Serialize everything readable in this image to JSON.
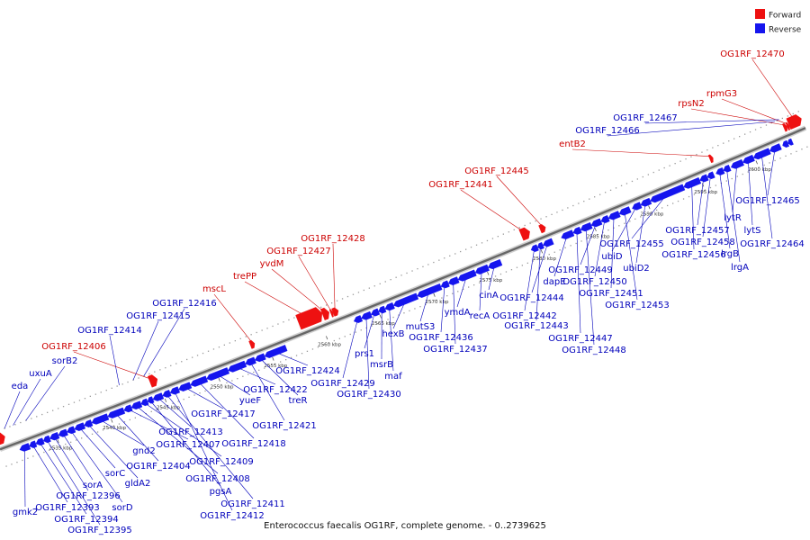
{
  "caption": "Enterococcus faecalis OG1RF, complete genome. - 0..2739625",
  "legend": [
    {
      "label": "Forward",
      "color": "#ee1111"
    },
    {
      "label": "Reverse",
      "color": "#1515ee"
    }
  ],
  "colors": {
    "forward": "#ee1111",
    "reverse": "#1515ee",
    "label_forward": "#cc0000",
    "label_reverse": "#0000bb",
    "backbone": "#666666"
  },
  "genome": {
    "start_kbp": 2530,
    "end_kbp": 2605
  },
  "ticks": [
    {
      "kbp": 2535,
      "label": "2535 kbp"
    },
    {
      "kbp": 2540,
      "label": "2540 kbp"
    },
    {
      "kbp": 2545,
      "label": "2545 kbp"
    },
    {
      "kbp": 2550,
      "label": "2550 kbp"
    },
    {
      "kbp": 2555,
      "label": "2555 kbp"
    },
    {
      "kbp": 2560,
      "label": "2560 kbp"
    },
    {
      "kbp": 2565,
      "label": "2565 kbp"
    },
    {
      "kbp": 2570,
      "label": "2570 kbp"
    },
    {
      "kbp": 2575,
      "label": "2575 kbp"
    },
    {
      "kbp": 2580,
      "label": "2580 kbp"
    },
    {
      "kbp": 2585,
      "label": "2585 kbp"
    },
    {
      "kbp": 2590,
      "label": "2590 kbp"
    },
    {
      "kbp": 2595,
      "label": "2595 kbp"
    },
    {
      "kbp": 2600,
      "label": "2600 kbp"
    }
  ],
  "genes_forward": [
    {
      "name": "",
      "start": 2530.0,
      "end": 2530.8
    },
    {
      "name": "OG1RF_12406",
      "start": 2544.3,
      "end": 2545.0
    },
    {
      "name": "mscL",
      "start": 2553.6,
      "end": 2554.0
    },
    {
      "name": "trePP",
      "start": 2558.2,
      "end": 2560.4
    },
    {
      "name": "yvdM",
      "start": 2560.4,
      "end": 2561.0
    },
    {
      "name": "OG1RF_12427",
      "start": 2561.1,
      "end": 2561.3
    },
    {
      "name": "OG1RF_12428",
      "start": 2561.3,
      "end": 2561.8
    },
    {
      "name": "OG1RF_12441",
      "start": 2578.9,
      "end": 2579.7
    },
    {
      "name": "OG1RF_12445",
      "start": 2580.6,
      "end": 2581.1
    },
    {
      "name": "entB2",
      "start": 2596.4,
      "end": 2596.7
    },
    {
      "name": "rpsN2",
      "start": 2603.3,
      "end": 2603.6
    },
    {
      "name": "rpmG3",
      "start": 2603.6,
      "end": 2603.8
    },
    {
      "name": "OG1RF_12470",
      "start": 2603.8,
      "end": 2605.0
    }
  ],
  "genes_reverse": [
    {
      "name": "gmk2",
      "start": 2531.6,
      "end": 2532.5
    },
    {
      "name": "OG1RF_12393",
      "start": 2532.5,
      "end": 2533.1
    },
    {
      "name": "OG1RF_12394",
      "start": 2533.1,
      "end": 2533.8
    },
    {
      "name": "OG1RF_12395",
      "start": 2533.8,
      "end": 2534.4
    },
    {
      "name": "OG1RF_12396",
      "start": 2534.4,
      "end": 2535.2
    },
    {
      "name": "sorA",
      "start": 2535.2,
      "end": 2536.0
    },
    {
      "name": "sorD",
      "start": 2536.0,
      "end": 2536.7
    },
    {
      "name": "sorC",
      "start": 2536.7,
      "end": 2537.6
    },
    {
      "name": "gldA2",
      "start": 2537.6,
      "end": 2538.3
    },
    {
      "name": "gnd2",
      "start": 2538.3,
      "end": 2539.8
    },
    {
      "name": "OG1RF_12404",
      "start": 2539.8,
      "end": 2541.3
    },
    {
      "name": "OG1RF_12407",
      "start": 2541.3,
      "end": 2542.0
    },
    {
      "name": "OG1RF_12408",
      "start": 2542.0,
      "end": 2542.9
    },
    {
      "name": "OG1RF_12409",
      "start": 2542.9,
      "end": 2543.5
    },
    {
      "name": "pgsA",
      "start": 2543.5,
      "end": 2544.0
    },
    {
      "name": "OG1RF_12413",
      "start": 2544.0,
      "end": 2544.9
    },
    {
      "name": "OG1RF_12411",
      "start": 2544.9,
      "end": 2545.6
    },
    {
      "name": "OG1RF_12412",
      "start": 2545.6,
      "end": 2546.4
    },
    {
      "name": "OG1RF_12417",
      "start": 2546.4,
      "end": 2547.5
    },
    {
      "name": "OG1RF_12418",
      "start": 2547.5,
      "end": 2549.0
    },
    {
      "name": "yueF",
      "start": 2549.0,
      "end": 2551.0
    },
    {
      "name": "OG1RF_12422",
      "start": 2551.0,
      "end": 2552.6
    },
    {
      "name": "OG1RF_12421",
      "start": 2552.6,
      "end": 2553.5
    },
    {
      "name": "treR",
      "start": 2553.5,
      "end": 2554.4
    },
    {
      "name": "OG1RF_12424",
      "start": 2554.4,
      "end": 2556.4
    },
    {
      "name": "OG1RF_12429",
      "start": 2562.7,
      "end": 2563.4
    },
    {
      "name": "OG1RF_12430",
      "start": 2563.4,
      "end": 2564.3
    },
    {
      "name": "prs1",
      "start": 2564.3,
      "end": 2565.0
    },
    {
      "name": "msrB",
      "start": 2565.0,
      "end": 2565.6
    },
    {
      "name": "maf",
      "start": 2565.6,
      "end": 2566.4
    },
    {
      "name": "hexB",
      "start": 2566.4,
      "end": 2568.6
    },
    {
      "name": "mutS3",
      "start": 2568.6,
      "end": 2570.8
    },
    {
      "name": "OG1RF_12436",
      "start": 2570.8,
      "end": 2571.5
    },
    {
      "name": "OG1RF_12437",
      "start": 2571.5,
      "end": 2572.4
    },
    {
      "name": "ymdA",
      "start": 2572.4,
      "end": 2574.0
    },
    {
      "name": "recA",
      "start": 2574.0,
      "end": 2575.2
    },
    {
      "name": "cinA",
      "start": 2575.2,
      "end": 2576.4
    },
    {
      "name": "OG1RF_12442",
      "start": 2579.2,
      "end": 2579.8
    },
    {
      "name": "OG1RF_12443",
      "start": 2579.8,
      "end": 2580.3
    },
    {
      "name": "OG1RF_12444",
      "start": 2580.3,
      "end": 2581.2
    },
    {
      "name": "dapE",
      "start": 2582.0,
      "end": 2583.1
    },
    {
      "name": "OG1RF_12447",
      "start": 2583.1,
      "end": 2583.8
    },
    {
      "name": "OG1RF_12448",
      "start": 2583.8,
      "end": 2584.8
    },
    {
      "name": "OG1RF_12449",
      "start": 2584.8,
      "end": 2585.7
    },
    {
      "name": "OG1RF_12450",
      "start": 2585.7,
      "end": 2586.4
    },
    {
      "name": "OG1RF_12451",
      "start": 2586.4,
      "end": 2587.4
    },
    {
      "name": "OG1RF_12453",
      "start": 2587.4,
      "end": 2588.4
    },
    {
      "name": "ubiD",
      "start": 2588.6,
      "end": 2589.4
    },
    {
      "name": "ubiD2",
      "start": 2589.4,
      "end": 2590.3
    },
    {
      "name": "OG1RF_12455",
      "start": 2590.3,
      "end": 2593.4
    },
    {
      "name": "OG1RF_12456",
      "start": 2593.4,
      "end": 2594.9
    },
    {
      "name": "OG1RF_12457",
      "start": 2594.9,
      "end": 2595.6
    },
    {
      "name": "OG1RF_12458",
      "start": 2595.6,
      "end": 2596.2
    },
    {
      "name": "lrgB",
      "start": 2596.4,
      "end": 2597.1
    },
    {
      "name": "lrgA",
      "start": 2597.1,
      "end": 2597.7
    },
    {
      "name": "lytR",
      "start": 2597.8,
      "end": 2598.9
    },
    {
      "name": "lytS",
      "start": 2598.9,
      "end": 2599.9
    },
    {
      "name": "OG1RF_12464",
      "start": 2599.9,
      "end": 2601.4
    },
    {
      "name": "OG1RF_12465",
      "start": 2601.4,
      "end": 2602.4
    },
    {
      "name": "OG1RF_12466",
      "start": 2602.6,
      "end": 2603.1
    },
    {
      "name": "OG1RF_12467",
      "start": 2603.1,
      "end": 2603.5
    }
  ],
  "labels_forward": [
    {
      "gene": "OG1RF_12406",
      "text": "OG1RF_12406"
    },
    {
      "gene": "mscL",
      "text": "mscL"
    },
    {
      "gene": "trePP",
      "text": "trePP"
    },
    {
      "gene": "yvdM",
      "text": "yvdM"
    },
    {
      "gene": "OG1RF_12427",
      "text": "OG1RF_12427"
    },
    {
      "gene": "OG1RF_12428",
      "text": "OG1RF_12428"
    },
    {
      "gene": "OG1RF_12441",
      "text": "OG1RF_12441"
    },
    {
      "gene": "OG1RF_12445",
      "text": "OG1RF_12445"
    },
    {
      "gene": "entB2",
      "text": "entB2"
    },
    {
      "gene": "rpsN2",
      "text": "rpsN2"
    },
    {
      "gene": "rpmG3",
      "text": "rpmG3"
    },
    {
      "gene": "OG1RF_12470",
      "text": "OG1RF_12470"
    }
  ],
  "labels_above_reverse": [
    {
      "gene": "eda",
      "text": "eda"
    },
    {
      "gene": "uxuA",
      "text": "uxuA"
    },
    {
      "gene": "sorB2",
      "text": "sorB2"
    },
    {
      "gene": "OG1RF_12414",
      "text": "OG1RF_12414"
    },
    {
      "gene": "OG1RF_12415",
      "text": "OG1RF_12415"
    },
    {
      "gene": "OG1RF_12416",
      "text": "OG1RF_12416"
    },
    {
      "gene": "OG1RF_12466",
      "text": "OG1RF_12466"
    },
    {
      "gene": "OG1RF_12467",
      "text": "OG1RF_12467"
    }
  ],
  "labels_reverse": [
    {
      "gene": "gmk2",
      "text": "gmk2"
    },
    {
      "gene": "OG1RF_12393",
      "text": "OG1RF_12393"
    },
    {
      "gene": "OG1RF_12394",
      "text": "OG1RF_12394"
    },
    {
      "gene": "OG1RF_12395",
      "text": "OG1RF_12395"
    },
    {
      "gene": "OG1RF_12396",
      "text": "OG1RF_12396"
    },
    {
      "gene": "sorA",
      "text": "sorA"
    },
    {
      "gene": "sorD",
      "text": "sorD"
    },
    {
      "gene": "sorC",
      "text": "sorC"
    },
    {
      "gene": "gldA2",
      "text": "gldA2"
    },
    {
      "gene": "gnd2",
      "text": "gnd2"
    },
    {
      "gene": "OG1RF_12404",
      "text": "OG1RF_12404"
    },
    {
      "gene": "OG1RF_12407",
      "text": "OG1RF_12407"
    },
    {
      "gene": "OG1RF_12408",
      "text": "OG1RF_12408"
    },
    {
      "gene": "OG1RF_12409",
      "text": "OG1RF_12409"
    },
    {
      "gene": "pgsA",
      "text": "pgsA"
    },
    {
      "gene": "OG1RF_12413",
      "text": "OG1RF_12413"
    },
    {
      "gene": "OG1RF_12411",
      "text": "OG1RF_12411"
    },
    {
      "gene": "OG1RF_12412",
      "text": "OG1RF_12412"
    },
    {
      "gene": "OG1RF_12417",
      "text": "OG1RF_12417"
    },
    {
      "gene": "OG1RF_12418",
      "text": "OG1RF_12418"
    },
    {
      "gene": "yueF",
      "text": "yueF"
    },
    {
      "gene": "OG1RF_12422",
      "text": "OG1RF_12422"
    },
    {
      "gene": "OG1RF_12421",
      "text": "OG1RF_12421"
    },
    {
      "gene": "treR",
      "text": "treR"
    },
    {
      "gene": "OG1RF_12424",
      "text": "OG1RF_12424"
    },
    {
      "gene": "OG1RF_12429",
      "text": "OG1RF_12429"
    },
    {
      "gene": "OG1RF_12430",
      "text": "OG1RF_12430"
    },
    {
      "gene": "prs1",
      "text": "prs1"
    },
    {
      "gene": "msrB",
      "text": "msrB"
    },
    {
      "gene": "maf",
      "text": "maf"
    },
    {
      "gene": "hexB",
      "text": "hexB"
    },
    {
      "gene": "mutS3",
      "text": "mutS3"
    },
    {
      "gene": "OG1RF_12436",
      "text": "OG1RF_12436"
    },
    {
      "gene": "OG1RF_12437",
      "text": "OG1RF_12437"
    },
    {
      "gene": "ymdA",
      "text": "ymdA"
    },
    {
      "gene": "recA",
      "text": "recA"
    },
    {
      "gene": "cinA",
      "text": "cinA"
    },
    {
      "gene": "OG1RF_12442",
      "text": "OG1RF_12442"
    },
    {
      "gene": "OG1RF_12443",
      "text": "OG1RF_12443"
    },
    {
      "gene": "OG1RF_12444",
      "text": "OG1RF_12444"
    },
    {
      "gene": "dapE",
      "text": "dapE"
    },
    {
      "gene": "OG1RF_12447",
      "text": "OG1RF_12447"
    },
    {
      "gene": "OG1RF_12448",
      "text": "OG1RF_12448"
    },
    {
      "gene": "OG1RF_12449",
      "text": "OG1RF_12449"
    },
    {
      "gene": "OG1RF_12450",
      "text": "OG1RF_12450"
    },
    {
      "gene": "OG1RF_12451",
      "text": "OG1RF_12451"
    },
    {
      "gene": "OG1RF_12453",
      "text": "OG1RF_12453"
    },
    {
      "gene": "ubiD",
      "text": "ubiD"
    },
    {
      "gene": "ubiD2",
      "text": "ubiD2"
    },
    {
      "gene": "OG1RF_12455",
      "text": "OG1RF_12455"
    },
    {
      "gene": "OG1RF_12456",
      "text": "OG1RF_12456"
    },
    {
      "gene": "OG1RF_12457",
      "text": "OG1RF_12457"
    },
    {
      "gene": "OG1RF_12458",
      "text": "OG1RF_12458"
    },
    {
      "gene": "lrgB",
      "text": "lrgB"
    },
    {
      "gene": "lrgA",
      "text": "lrgA"
    },
    {
      "gene": "lytR",
      "text": "lytR"
    },
    {
      "gene": "lytS",
      "text": "lytS"
    },
    {
      "gene": "OG1RF_12464",
      "text": "OG1RF_12464"
    },
    {
      "gene": "OG1RF_12465",
      "text": "OG1RF_12465"
    }
  ]
}
